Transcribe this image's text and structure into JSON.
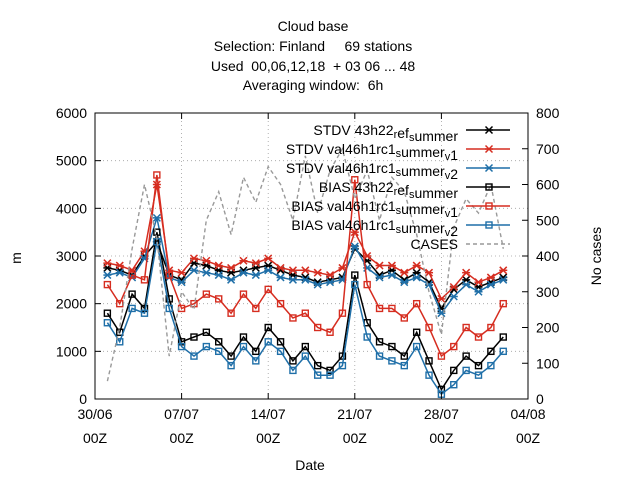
{
  "chart_data": {
    "type": "line",
    "title_lines": [
      "Cloud base",
      "Selection: Finland     69 stations",
      "Used  00,06,12,18  + 03 06 ... 48",
      "Averaging window:  6h"
    ],
    "xlabel": "Date",
    "ylabel": "m",
    "y2label": "No cases",
    "xlim": [
      0,
      35
    ],
    "ylim": [
      0,
      6000
    ],
    "y2lim": [
      0,
      800
    ],
    "x_ticks": [
      {
        "value": 0,
        "line1": "30/06",
        "line2": "00Z"
      },
      {
        "value": 7,
        "line1": "07/07",
        "line2": "00Z"
      },
      {
        "value": 14,
        "line1": "14/07",
        "line2": "00Z"
      },
      {
        "value": 21,
        "line1": "21/07",
        "line2": "00Z"
      },
      {
        "value": 28,
        "line1": "28/07",
        "line2": "00Z"
      },
      {
        "value": 35,
        "line1": "04/08",
        "line2": "00Z"
      }
    ],
    "y_ticks": [
      "0",
      "1000",
      "2000",
      "3000",
      "4000",
      "5000",
      "6000"
    ],
    "y2_ticks": [
      "0",
      "100",
      "200",
      "300",
      "400",
      "500",
      "600",
      "700",
      "800"
    ],
    "grid": true,
    "legend_position": "top-right",
    "series": [
      {
        "name": "STDV 43h22",
        "sub1": "r",
        "mid": "ef",
        "sub2": "s",
        "tail": "ummer",
        "color": "#000000",
        "marker": "star",
        "axis": "y",
        "x": [
          1,
          2,
          3,
          4,
          5,
          6,
          7,
          8,
          9,
          10,
          11,
          12,
          13,
          14,
          15,
          16,
          17,
          18,
          19,
          20,
          21,
          22,
          23,
          24,
          25,
          26,
          27,
          28,
          29,
          30,
          31,
          32,
          33
        ],
        "values": [
          2750,
          2700,
          2600,
          3000,
          3300,
          2600,
          2500,
          2850,
          2800,
          2700,
          2650,
          2700,
          2750,
          2800,
          2700,
          2600,
          2550,
          2450,
          2500,
          2550,
          3150,
          2900,
          2600,
          2700,
          2500,
          2650,
          2450,
          1900,
          2300,
          2500,
          2350,
          2450,
          2550
        ]
      },
      {
        "name": "STDV val46h1rc1",
        "sub1": "s",
        "mid": "",
        "sub2": "",
        "tail": "ummer",
        "sub3": "v",
        "tail2": "1",
        "color": "#d62d20",
        "marker": "star",
        "axis": "y",
        "x": [
          1,
          2,
          3,
          4,
          5,
          6,
          7,
          8,
          9,
          10,
          11,
          12,
          13,
          14,
          15,
          16,
          17,
          18,
          19,
          20,
          21,
          22,
          23,
          24,
          25,
          26,
          27,
          28,
          29,
          30,
          31,
          32,
          33
        ],
        "values": [
          2850,
          2800,
          2700,
          3100,
          4500,
          2700,
          2650,
          2950,
          2900,
          2800,
          2750,
          2900,
          2850,
          2950,
          2750,
          2700,
          2700,
          2650,
          2600,
          2750,
          3500,
          3000,
          2800,
          2800,
          2650,
          2800,
          2650,
          2100,
          2350,
          2650,
          2450,
          2550,
          2700
        ]
      },
      {
        "name": "STDV val46h1rc1",
        "sub1": "s",
        "mid": "",
        "sub2": "",
        "tail": "ummer",
        "sub3": "v",
        "tail2": "2",
        "color": "#1f6fa8",
        "marker": "star",
        "axis": "y",
        "x": [
          1,
          2,
          3,
          4,
          5,
          6,
          7,
          8,
          9,
          10,
          11,
          12,
          13,
          14,
          15,
          16,
          17,
          18,
          19,
          20,
          21,
          22,
          23,
          24,
          25,
          26,
          27,
          28,
          29,
          30,
          31,
          32,
          33
        ],
        "values": [
          2600,
          2650,
          2550,
          2950,
          3800,
          2550,
          2450,
          2700,
          2650,
          2600,
          2500,
          2650,
          2600,
          2700,
          2550,
          2500,
          2500,
          2400,
          2450,
          2500,
          3200,
          2750,
          2550,
          2600,
          2450,
          2550,
          2400,
          1800,
          2150,
          2400,
          2250,
          2400,
          2500
        ]
      },
      {
        "name": "BIAS 43h22",
        "sub1": "r",
        "mid": "ef",
        "sub2": "s",
        "tail": "ummer",
        "color": "#000000",
        "marker": "square",
        "axis": "y",
        "x": [
          1,
          2,
          3,
          4,
          5,
          6,
          7,
          8,
          9,
          10,
          11,
          12,
          13,
          14,
          15,
          16,
          17,
          18,
          19,
          20,
          21,
          22,
          23,
          24,
          25,
          26,
          27,
          28,
          29,
          30,
          31,
          32,
          33
        ],
        "values": [
          1800,
          1400,
          2200,
          1900,
          3500,
          2100,
          1200,
          1300,
          1400,
          1200,
          900,
          1300,
          1000,
          1500,
          1200,
          800,
          1100,
          700,
          600,
          900,
          2600,
          1600,
          1200,
          1100,
          900,
          1400,
          800,
          200,
          600,
          900,
          700,
          1000,
          1300
        ]
      },
      {
        "name": "BIAS val46h1rc1",
        "sub1": "s",
        "mid": "",
        "sub2": "",
        "tail": "ummer",
        "sub3": "v",
        "tail2": "1",
        "color": "#d62d20",
        "marker": "square",
        "axis": "y",
        "x": [
          1,
          2,
          3,
          4,
          5,
          6,
          7,
          8,
          9,
          10,
          11,
          12,
          13,
          14,
          15,
          16,
          17,
          18,
          19,
          20,
          21,
          22,
          23,
          24,
          25,
          26,
          27,
          28,
          29,
          30,
          31,
          32,
          33
        ],
        "values": [
          2400,
          2000,
          2600,
          2500,
          4700,
          2600,
          1900,
          2000,
          2200,
          2100,
          1800,
          2200,
          1900,
          2300,
          2000,
          1700,
          1800,
          1500,
          1400,
          1800,
          4600,
          2400,
          1900,
          1900,
          1700,
          2000,
          1500,
          900,
          1100,
          1500,
          1300,
          1500,
          2000
        ]
      },
      {
        "name": "BIAS val46h1rc1",
        "sub1": "s",
        "mid": "",
        "sub2": "",
        "tail": "ummer",
        "sub3": "v",
        "tail2": "2",
        "color": "#1f6fa8",
        "marker": "square",
        "axis": "y",
        "x": [
          1,
          2,
          3,
          4,
          5,
          6,
          7,
          8,
          9,
          10,
          11,
          12,
          13,
          14,
          15,
          16,
          17,
          18,
          19,
          20,
          21,
          22,
          23,
          24,
          25,
          26,
          27,
          28,
          29,
          30,
          31,
          32,
          33
        ],
        "values": [
          1600,
          1200,
          1900,
          1800,
          3300,
          1900,
          1100,
          900,
          1100,
          1000,
          700,
          1100,
          800,
          1200,
          1000,
          600,
          900,
          500,
          500,
          700,
          2400,
          1300,
          900,
          800,
          700,
          1100,
          500,
          100,
          300,
          600,
          500,
          700,
          1000
        ]
      },
      {
        "name": "CASES",
        "color": "#999999",
        "marker": "none",
        "dashed": true,
        "axis": "y2",
        "x": [
          1,
          2,
          3,
          4,
          5,
          6,
          7,
          8,
          9,
          10,
          11,
          12,
          13,
          14,
          15,
          16,
          17,
          18,
          19,
          20,
          21,
          22,
          23,
          24,
          25,
          26,
          27,
          28,
          29,
          30,
          31,
          32,
          33
        ],
        "values": [
          50,
          200,
          420,
          600,
          450,
          120,
          300,
          250,
          500,
          580,
          460,
          620,
          550,
          650,
          600,
          500,
          680,
          520,
          640,
          700,
          560,
          640,
          500,
          620,
          580,
          460,
          300,
          180,
          480,
          560,
          520,
          600,
          420
        ]
      }
    ]
  }
}
